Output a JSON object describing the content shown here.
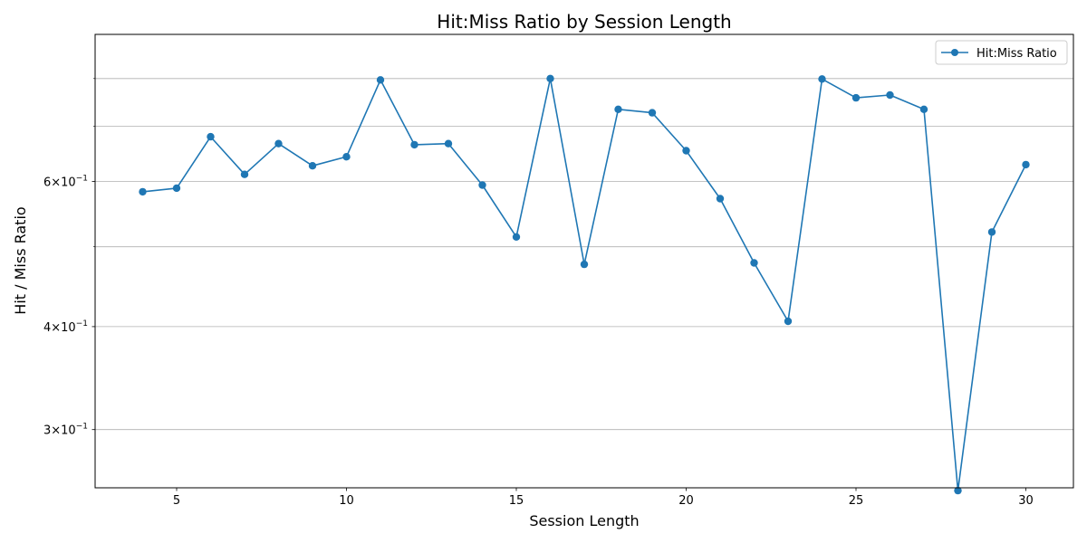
{
  "chart_data": {
    "type": "line",
    "title": "Hit:Miss Ratio by Session Length",
    "xlabel": "Session Length",
    "ylabel": "Hit / Miss Ratio",
    "yscale": "log",
    "grid": "y-major-and-minor",
    "legend": "top-right",
    "xlim": [
      2.6,
      31.4
    ],
    "ylim": [
      0.255,
      0.905
    ],
    "xticks": [
      5,
      10,
      15,
      20,
      25,
      30
    ],
    "yticks": [
      {
        "value": 0.3,
        "base": "3",
        "exp": "−1"
      },
      {
        "value": 0.4,
        "base": "4",
        "exp": "−1"
      },
      {
        "value": 0.6,
        "base": "6",
        "exp": "−1"
      }
    ],
    "y_gridlines": [
      0.3,
      0.4,
      0.5,
      0.6,
      0.7,
      0.8
    ],
    "color": "#1f77b4",
    "series": [
      {
        "name": "Hit:Miss Ratio",
        "x": [
          4,
          5,
          6,
          7,
          8,
          9,
          10,
          11,
          12,
          13,
          14,
          15,
          16,
          17,
          18,
          19,
          20,
          21,
          22,
          23,
          24,
          25,
          26,
          27,
          28,
          29,
          30
        ],
        "y": [
          0.583,
          0.589,
          0.68,
          0.612,
          0.667,
          0.627,
          0.643,
          0.797,
          0.665,
          0.667,
          0.594,
          0.514,
          0.8,
          0.476,
          0.734,
          0.727,
          0.654,
          0.572,
          0.478,
          0.406,
          0.799,
          0.758,
          0.764,
          0.734,
          0.253,
          0.521,
          0.629
        ]
      }
    ]
  }
}
